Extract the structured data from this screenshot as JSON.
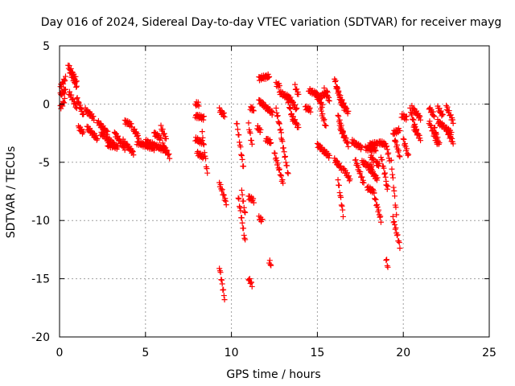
{
  "chart_data": {
    "type": "scatter",
    "title": "Day 016 of 2024, Sidereal Day-to-day VTEC variation (SDTVAR) for receiver mayg",
    "xlabel": "GPS time / hours",
    "ylabel": "SDTVAR / TECUs",
    "xlim": [
      0,
      25
    ],
    "ylim": [
      -20,
      5
    ],
    "xticks": [
      0,
      5,
      10,
      15,
      20,
      25
    ],
    "yticks": [
      -20,
      -15,
      -10,
      -5,
      0,
      5
    ],
    "grid": true,
    "marker": "plus",
    "color": "#ff0000",
    "tracks": [
      {
        "t0": 0.05,
        "t1": 0.35,
        "y0": 1.5,
        "y1": 2.2
      },
      {
        "t0": 0.05,
        "t1": 0.35,
        "y0": 0.8,
        "y1": 1.2
      },
      {
        "t0": 0.05,
        "t1": 0.3,
        "y0": -0.3,
        "y1": 0.3
      },
      {
        "t0": 0.5,
        "t1": 1.0,
        "y0": 3.3,
        "y1": 2.0
      },
      {
        "t0": 0.6,
        "t1": 1.0,
        "y0": 2.8,
        "y1": 1.5
      },
      {
        "t0": 0.55,
        "t1": 1.0,
        "y0": 1.0,
        "y1": -0.3
      },
      {
        "t0": 1.0,
        "t1": 1.4,
        "y0": 0.5,
        "y1": -1.0
      },
      {
        "t0": 1.1,
        "t1": 1.4,
        "y0": -2.0,
        "y1": -2.5
      },
      {
        "t0": 1.5,
        "t1": 2.0,
        "y0": -0.5,
        "y1": -1.2
      },
      {
        "t0": 1.6,
        "t1": 2.2,
        "y0": -2.0,
        "y1": -3.0
      },
      {
        "t0": 2.2,
        "t1": 2.8,
        "y0": -1.5,
        "y1": -2.5
      },
      {
        "t0": 2.4,
        "t1": 3.2,
        "y0": -2.5,
        "y1": -3.5
      },
      {
        "t0": 2.8,
        "t1": 3.4,
        "y0": -3.5,
        "y1": -3.7
      },
      {
        "t0": 3.2,
        "t1": 3.8,
        "y0": -2.5,
        "y1": -3.8
      },
      {
        "t0": 3.7,
        "t1": 4.3,
        "y0": -3.2,
        "y1": -4.2
      },
      {
        "t0": 3.8,
        "t1": 4.2,
        "y0": -1.5,
        "y1": -1.8
      },
      {
        "t0": 4.3,
        "t1": 4.6,
        "y0": -2.2,
        "y1": -2.8
      },
      {
        "t0": 4.5,
        "t1": 5.5,
        "y0": -3.3,
        "y1": -3.8
      },
      {
        "t0": 5.0,
        "t1": 6.2,
        "y0": -3.2,
        "y1": -4.0
      },
      {
        "t0": 5.5,
        "t1": 5.9,
        "y0": -2.5,
        "y1": -3.0
      },
      {
        "t0": 5.9,
        "t1": 6.2,
        "y0": -2.0,
        "y1": -3.0
      },
      {
        "t0": 6.0,
        "t1": 6.4,
        "y0": -3.5,
        "y1": -4.5
      },
      {
        "t0": 7.9,
        "t1": 8.1,
        "y0": 0.0,
        "y1": 0.0
      },
      {
        "t0": 7.9,
        "t1": 8.4,
        "y0": -1.0,
        "y1": -1.2
      },
      {
        "t0": 7.9,
        "t1": 8.3,
        "y0": -3.0,
        "y1": -3.3
      },
      {
        "t0": 8.0,
        "t1": 8.4,
        "y0": -4.2,
        "y1": -4.6
      },
      {
        "t0": 8.3,
        "t1": 8.6,
        "y0": -2.5,
        "y1": -6.0
      },
      {
        "t0": 9.3,
        "t1": 9.6,
        "y0": -0.5,
        "y1": -1.0
      },
      {
        "t0": 9.3,
        "t1": 9.7,
        "y0": -6.8,
        "y1": -8.5
      },
      {
        "t0": 9.3,
        "t1": 9.6,
        "y0": -14.0,
        "y1": -16.7
      },
      {
        "t0": 10.3,
        "t1": 10.7,
        "y0": -1.5,
        "y1": -5.5
      },
      {
        "t0": 10.4,
        "t1": 10.8,
        "y0": -8.0,
        "y1": -11.8
      },
      {
        "t0": 10.6,
        "t1": 10.8,
        "y0": -7.5,
        "y1": -9.5
      },
      {
        "t0": 11.0,
        "t1": 11.2,
        "y0": -1.8,
        "y1": -3.5
      },
      {
        "t0": 11.0,
        "t1": 11.3,
        "y0": -8.0,
        "y1": -8.3
      },
      {
        "t0": 11.0,
        "t1": 11.2,
        "y0": -15.0,
        "y1": -15.5
      },
      {
        "t0": 11.1,
        "t1": 11.3,
        "y0": -0.3,
        "y1": -0.5
      },
      {
        "t0": 11.5,
        "t1": 11.7,
        "y0": -2.0,
        "y1": -2.3
      },
      {
        "t0": 11.6,
        "t1": 11.8,
        "y0": 0.3,
        "y1": 0.0
      },
      {
        "t0": 11.6,
        "t1": 11.8,
        "y0": -9.8,
        "y1": -10.0
      },
      {
        "t0": 11.6,
        "t1": 12.2,
        "y0": 2.2,
        "y1": 2.4
      },
      {
        "t0": 11.8,
        "t1": 12.4,
        "y0": 0.0,
        "y1": -0.8
      },
      {
        "t0": 12.0,
        "t1": 12.3,
        "y0": -3.0,
        "y1": -3.3
      },
      {
        "t0": 12.2,
        "t1": 12.3,
        "y0": -13.5,
        "y1": -13.8
      },
      {
        "t0": 12.5,
        "t1": 13.0,
        "y0": -4.2,
        "y1": -6.8
      },
      {
        "t0": 12.6,
        "t1": 12.9,
        "y0": -0.5,
        "y1": -2.5
      },
      {
        "t0": 12.6,
        "t1": 12.8,
        "y0": 1.7,
        "y1": 1.6
      },
      {
        "t0": 12.8,
        "t1": 13.4,
        "y0": 1.0,
        "y1": 0.5
      },
      {
        "t0": 12.9,
        "t1": 13.3,
        "y0": -2.8,
        "y1": -6.0
      },
      {
        "t0": 13.2,
        "t1": 13.6,
        "y0": 0.8,
        "y1": -1.5
      },
      {
        "t0": 13.4,
        "t1": 13.8,
        "y0": 0.5,
        "y1": -0.5
      },
      {
        "t0": 13.5,
        "t1": 13.9,
        "y0": -1.0,
        "y1": -2.0
      },
      {
        "t0": 13.7,
        "t1": 13.9,
        "y0": 1.5,
        "y1": 0.8
      },
      {
        "t0": 14.3,
        "t1": 14.6,
        "y0": -0.3,
        "y1": -0.5
      },
      {
        "t0": 14.5,
        "t1": 15.0,
        "y0": 1.2,
        "y1": 0.8
      },
      {
        "t0": 14.9,
        "t1": 15.3,
        "y0": 1.0,
        "y1": -0.2
      },
      {
        "t0": 15.0,
        "t1": 15.6,
        "y0": 0.5,
        "y1": 1.0
      },
      {
        "t0": 15.2,
        "t1": 15.5,
        "y0": -0.5,
        "y1": -2.0
      },
      {
        "t0": 15.4,
        "t1": 15.7,
        "y0": 1.2,
        "y1": 0.3
      },
      {
        "t0": 15.0,
        "t1": 15.7,
        "y0": -3.5,
        "y1": -4.5
      },
      {
        "t0": 16.0,
        "t1": 16.4,
        "y0": 2.2,
        "y1": 0.0
      },
      {
        "t0": 16.1,
        "t1": 16.6,
        "y0": 1.5,
        "y1": -0.5
      },
      {
        "t0": 16.4,
        "t1": 16.8,
        "y0": 0.3,
        "y1": -0.8
      },
      {
        "t0": 16.2,
        "t1": 16.6,
        "y0": -1.0,
        "y1": -3.0
      },
      {
        "t0": 16.3,
        "t1": 16.8,
        "y0": -2.0,
        "y1": -3.5
      },
      {
        "t0": 16.0,
        "t1": 16.4,
        "y0": -4.8,
        "y1": -5.5
      },
      {
        "t0": 16.2,
        "t1": 16.5,
        "y0": -6.5,
        "y1": -9.5
      },
      {
        "t0": 16.5,
        "t1": 16.9,
        "y0": -5.5,
        "y1": -6.5
      },
      {
        "t0": 17.0,
        "t1": 17.6,
        "y0": -3.2,
        "y1": -3.8
      },
      {
        "t0": 17.2,
        "t1": 17.7,
        "y0": -4.8,
        "y1": -6.8
      },
      {
        "t0": 17.6,
        "t1": 18.2,
        "y0": -5.0,
        "y1": -5.5
      },
      {
        "t0": 17.8,
        "t1": 18.4,
        "y0": -3.8,
        "y1": -3.9
      },
      {
        "t0": 17.9,
        "t1": 18.3,
        "y0": -7.2,
        "y1": -7.5
      },
      {
        "t0": 18.0,
        "t1": 18.5,
        "y0": -3.5,
        "y1": -3.4
      },
      {
        "t0": 18.0,
        "t1": 18.5,
        "y0": -5.5,
        "y1": -6.5
      },
      {
        "t0": 18.1,
        "t1": 18.3,
        "y0": -4.5,
        "y1": -4.9
      },
      {
        "t0": 18.4,
        "t1": 18.6,
        "y0": -5.0,
        "y1": -5.3
      },
      {
        "t0": 18.3,
        "t1": 18.7,
        "y0": -7.8,
        "y1": -10.0
      },
      {
        "t0": 18.6,
        "t1": 19.0,
        "y0": -3.3,
        "y1": -3.5
      },
      {
        "t0": 18.7,
        "t1": 19.0,
        "y0": -4.5,
        "y1": -6.5
      },
      {
        "t0": 19.0,
        "t1": 19.2,
        "y0": -3.5,
        "y1": -4.8
      },
      {
        "t0": 19.0,
        "t1": 19.1,
        "y0": -13.3,
        "y1": -14.0
      },
      {
        "t0": 19.0,
        "t1": 19.1,
        "y0": -7.0,
        "y1": -7.2
      },
      {
        "t0": 19.3,
        "t1": 19.6,
        "y0": -5.0,
        "y1": -9.5
      },
      {
        "t0": 19.4,
        "t1": 19.8,
        "y0": -9.8,
        "y1": -12.2
      },
      {
        "t0": 19.4,
        "t1": 19.8,
        "y0": -2.5,
        "y1": -2.2
      },
      {
        "t0": 19.5,
        "t1": 19.8,
        "y0": -3.0,
        "y1": -4.5
      },
      {
        "t0": 19.9,
        "t1": 20.2,
        "y0": -1.0,
        "y1": -1.2
      },
      {
        "t0": 20.0,
        "t1": 20.3,
        "y0": -3.0,
        "y1": -4.5
      },
      {
        "t0": 20.4,
        "t1": 20.8,
        "y0": -0.5,
        "y1": -2.5
      },
      {
        "t0": 20.5,
        "t1": 21.0,
        "y0": -0.3,
        "y1": -1.2
      },
      {
        "t0": 20.6,
        "t1": 21.0,
        "y0": -2.0,
        "y1": -3.0
      },
      {
        "t0": 21.5,
        "t1": 21.8,
        "y0": -0.3,
        "y1": -1.0
      },
      {
        "t0": 21.5,
        "t1": 22.0,
        "y0": -1.5,
        "y1": -3.5
      },
      {
        "t0": 21.8,
        "t1": 22.1,
        "y0": -2.0,
        "y1": -3.5
      },
      {
        "t0": 22.0,
        "t1": 22.3,
        "y0": -0.3,
        "y1": -1.0
      },
      {
        "t0": 22.0,
        "t1": 22.8,
        "y0": -1.5,
        "y1": -2.5
      },
      {
        "t0": 22.5,
        "t1": 22.9,
        "y0": -0.2,
        "y1": -1.5
      },
      {
        "t0": 22.6,
        "t1": 22.9,
        "y0": -2.5,
        "y1": -3.3
      }
    ]
  }
}
